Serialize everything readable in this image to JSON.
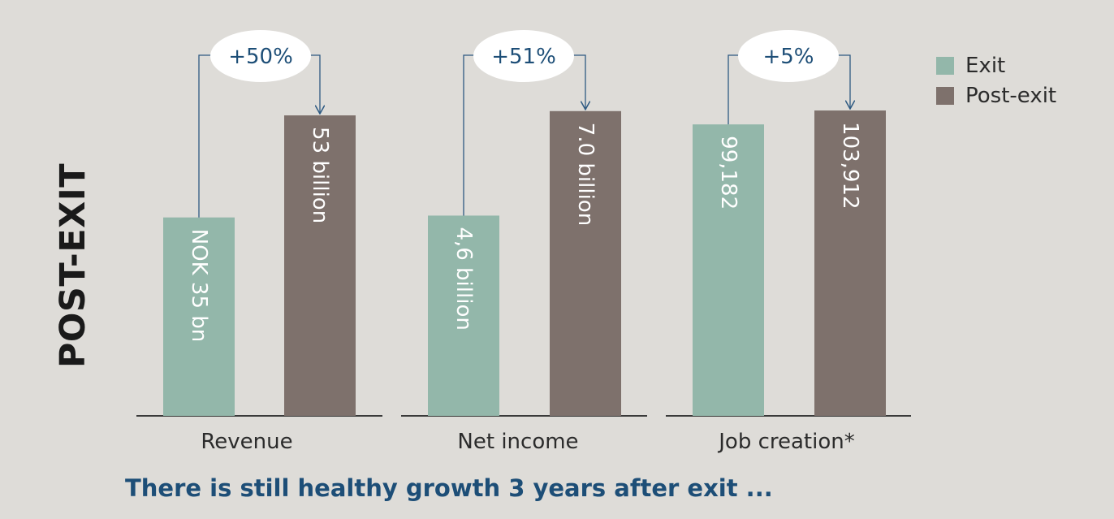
{
  "side_title": "POST-EXIT",
  "caption": "There is still healthy growth 3 years after exit ...",
  "colors": {
    "exit": "#93b7aa",
    "post_exit": "#7e716c",
    "connector": "#2e5a82",
    "axis": "#3a3a3a"
  },
  "legend": [
    {
      "label": "Exit",
      "color": "#93b7aa"
    },
    {
      "label": "Post-exit",
      "color": "#7e716c"
    }
  ],
  "chart_data": {
    "type": "bar",
    "categories": [
      "Revenue",
      "Net income",
      "Job creation*"
    ],
    "series": [
      {
        "name": "Exit",
        "values": [
          35,
          4.6,
          99182
        ],
        "labels": [
          "NOK 35 bn",
          "4,6 billion",
          "99,182"
        ]
      },
      {
        "name": "Post-exit",
        "values": [
          53,
          7.0,
          103912
        ],
        "labels": [
          "53 billion",
          "7.0 billion",
          "103,912"
        ]
      }
    ],
    "changes": [
      "+50%",
      "+51%",
      "+5%"
    ],
    "legend_position": "top-right",
    "grid": false
  }
}
